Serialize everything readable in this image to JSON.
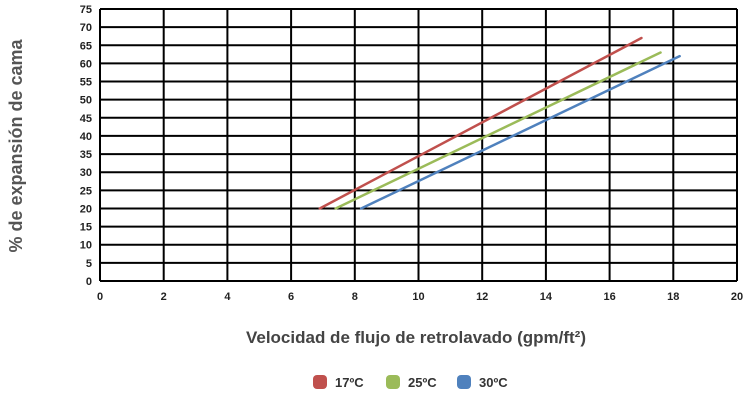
{
  "chart_data": {
    "type": "line",
    "xlabel": "Velocidad de flujo de retrolavado (gpm/ft²)",
    "ylabel": "% de expansión de cama",
    "xlim": [
      0,
      20
    ],
    "ylim": [
      0,
      75
    ],
    "xticks": [
      0,
      2,
      4,
      6,
      8,
      10,
      12,
      14,
      16,
      18,
      20
    ],
    "yticks": [
      0,
      5,
      10,
      15,
      20,
      25,
      30,
      35,
      40,
      45,
      50,
      55,
      60,
      65,
      70,
      75
    ],
    "grid": true,
    "legend_position": "bottom-center",
    "series": [
      {
        "name": "17ºC",
        "color": "#c0504d",
        "x": [
          6.9,
          17.0
        ],
        "y": [
          20,
          67
        ]
      },
      {
        "name": "25ºC",
        "color": "#9bbb59",
        "x": [
          7.4,
          17.6
        ],
        "y": [
          20,
          63
        ]
      },
      {
        "name": "30ºC",
        "color": "#4f81bd",
        "x": [
          8.2,
          18.2
        ],
        "y": [
          20,
          62
        ]
      }
    ]
  }
}
